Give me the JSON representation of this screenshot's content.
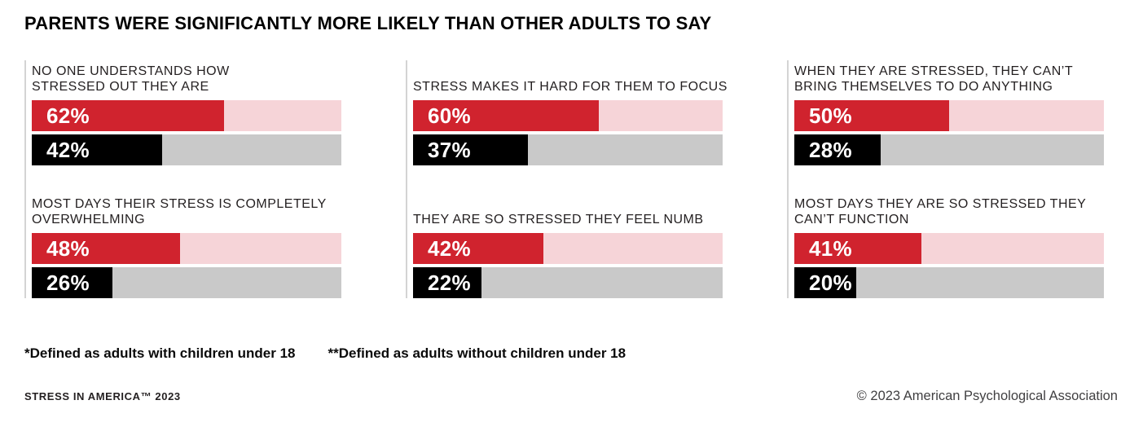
{
  "header": {
    "title": "PARENTS WERE SIGNIFICANTLY MORE LIKELY THAN OTHER ADULTS TO SAY"
  },
  "chart_data": {
    "type": "bar",
    "orientation": "horizontal",
    "unit": "%",
    "xlim": [
      0,
      100
    ],
    "grid": false,
    "legend": "none (series identified by footnote asterisks)",
    "series": [
      {
        "name": "Adults with children under 18 (parents)*",
        "bar_color": "#d0232e",
        "track_color": "#f6d4d8"
      },
      {
        "name": "Adults without children under 18 (other adults)**",
        "bar_color": "#000000",
        "track_color": "#c9c9c9"
      }
    ],
    "panels": [
      {
        "title": "NO ONE UNDERSTANDS HOW STRESSED OUT THEY ARE",
        "title_lines": [
          "NO ONE UNDERSTANDS HOW",
          "STRESSED OUT THEY ARE"
        ],
        "parents_value": 62,
        "parents_label": "62%",
        "others_value": 42,
        "others_label": "42%"
      },
      {
        "title": "STRESS MAKES IT HARD FOR THEM TO FOCUS",
        "title_lines": [
          "STRESS MAKES IT HARD FOR THEM TO FOCUS"
        ],
        "parents_value": 60,
        "parents_label": "60%",
        "others_value": 37,
        "others_label": "37%"
      },
      {
        "title": "WHEN THEY ARE STRESSED, THEY CAN’T BRING THEMSELVES TO DO ANYTHING",
        "title_lines": [
          "WHEN THEY ARE STRESSED, THEY CAN’T",
          "BRING THEMSELVES TO DO ANYTHING"
        ],
        "parents_value": 50,
        "parents_label": "50%",
        "others_value": 28,
        "others_label": "28%"
      },
      {
        "title": "MOST DAYS THEIR STRESS IS COMPLETELY OVERWHELMING",
        "title_lines": [
          "MOST DAYS THEIR STRESS IS COMPLETELY",
          "OVERWHELMING"
        ],
        "parents_value": 48,
        "parents_label": "48%",
        "others_value": 26,
        "others_label": "26%"
      },
      {
        "title": "THEY ARE SO STRESSED THEY FEEL NUMB",
        "title_lines": [
          "THEY ARE SO STRESSED THEY FEEL NUMB"
        ],
        "parents_value": 42,
        "parents_label": "42%",
        "others_value": 22,
        "others_label": "22%"
      },
      {
        "title": "MOST DAYS THEY ARE SO STRESSED THEY CAN’T FUNCTION",
        "title_lines": [
          "MOST DAYS THEY ARE SO STRESSED THEY",
          "CAN’T FUNCTION"
        ],
        "parents_value": 41,
        "parents_label": "41%",
        "others_value": 20,
        "others_label": "20%"
      }
    ]
  },
  "footnotes": {
    "parents": "*Defined as adults with children under 18",
    "others": "**Defined as adults without children under 18"
  },
  "footer": {
    "brand": "STRESS IN AMERICA™ 2023",
    "copyright": "© 2023 American Psychological Association"
  }
}
